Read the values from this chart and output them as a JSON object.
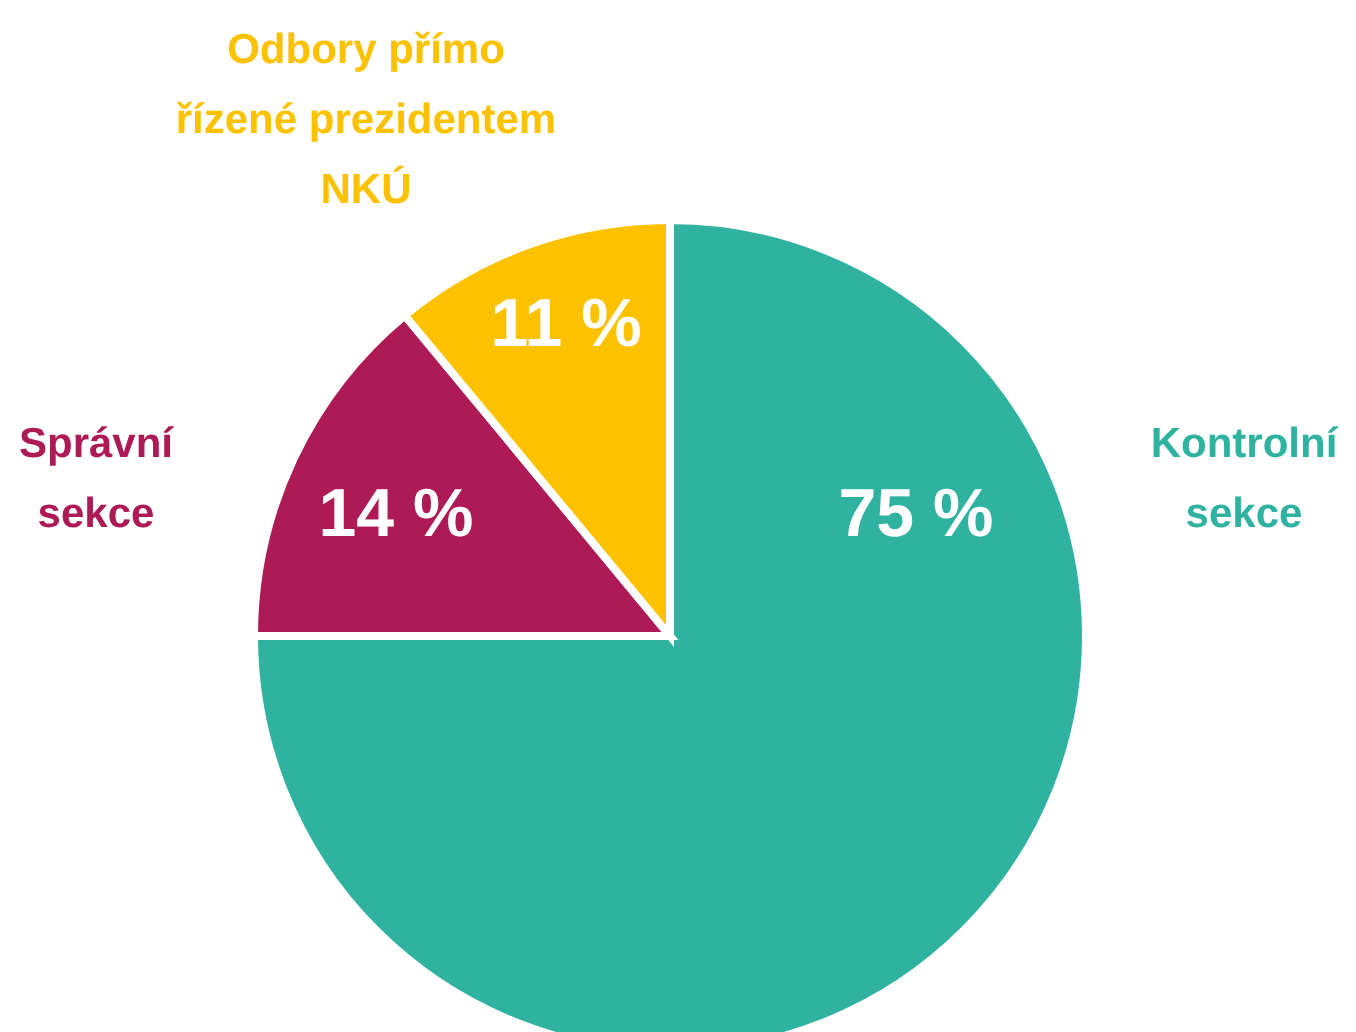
{
  "chart_data": {
    "type": "pie",
    "categories": [
      "Kontrolní sekce",
      "Správní sekce",
      "Odbory přímo řízené prezidentem NKÚ"
    ],
    "values": [
      75,
      14,
      11
    ],
    "colors": [
      "#2fb3a0",
      "#ae1a55",
      "#fcc200"
    ],
    "value_labels": [
      "75 %",
      "14 %",
      "11 %"
    ],
    "legend": false
  }
}
